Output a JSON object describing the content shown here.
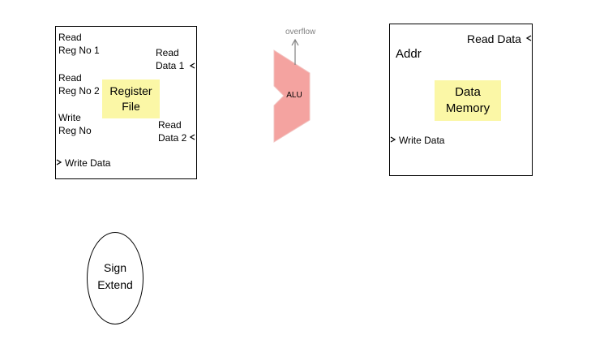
{
  "register_file": {
    "title": "Register\nFile",
    "read_reg_1": "Read\nReg No 1",
    "read_reg_2": "Read\nReg No 2",
    "write_reg": "Write\n Reg No",
    "write_data": "Write Data",
    "read_data_1": "Read\nData 1",
    "read_data_2": "Read\nData 2"
  },
  "alu": {
    "label": "ALU",
    "overflow": "overflow"
  },
  "data_memory": {
    "title": "Data\nMemory",
    "addr": "Addr",
    "read_data": "Read Data",
    "write_data": "Write Data"
  },
  "sign_extend": {
    "label": "Sign\nExtend"
  },
  "colors": {
    "highlight": "#fbf7a6",
    "alu_fill": "#f4a3a0",
    "arrow": "#808080"
  }
}
